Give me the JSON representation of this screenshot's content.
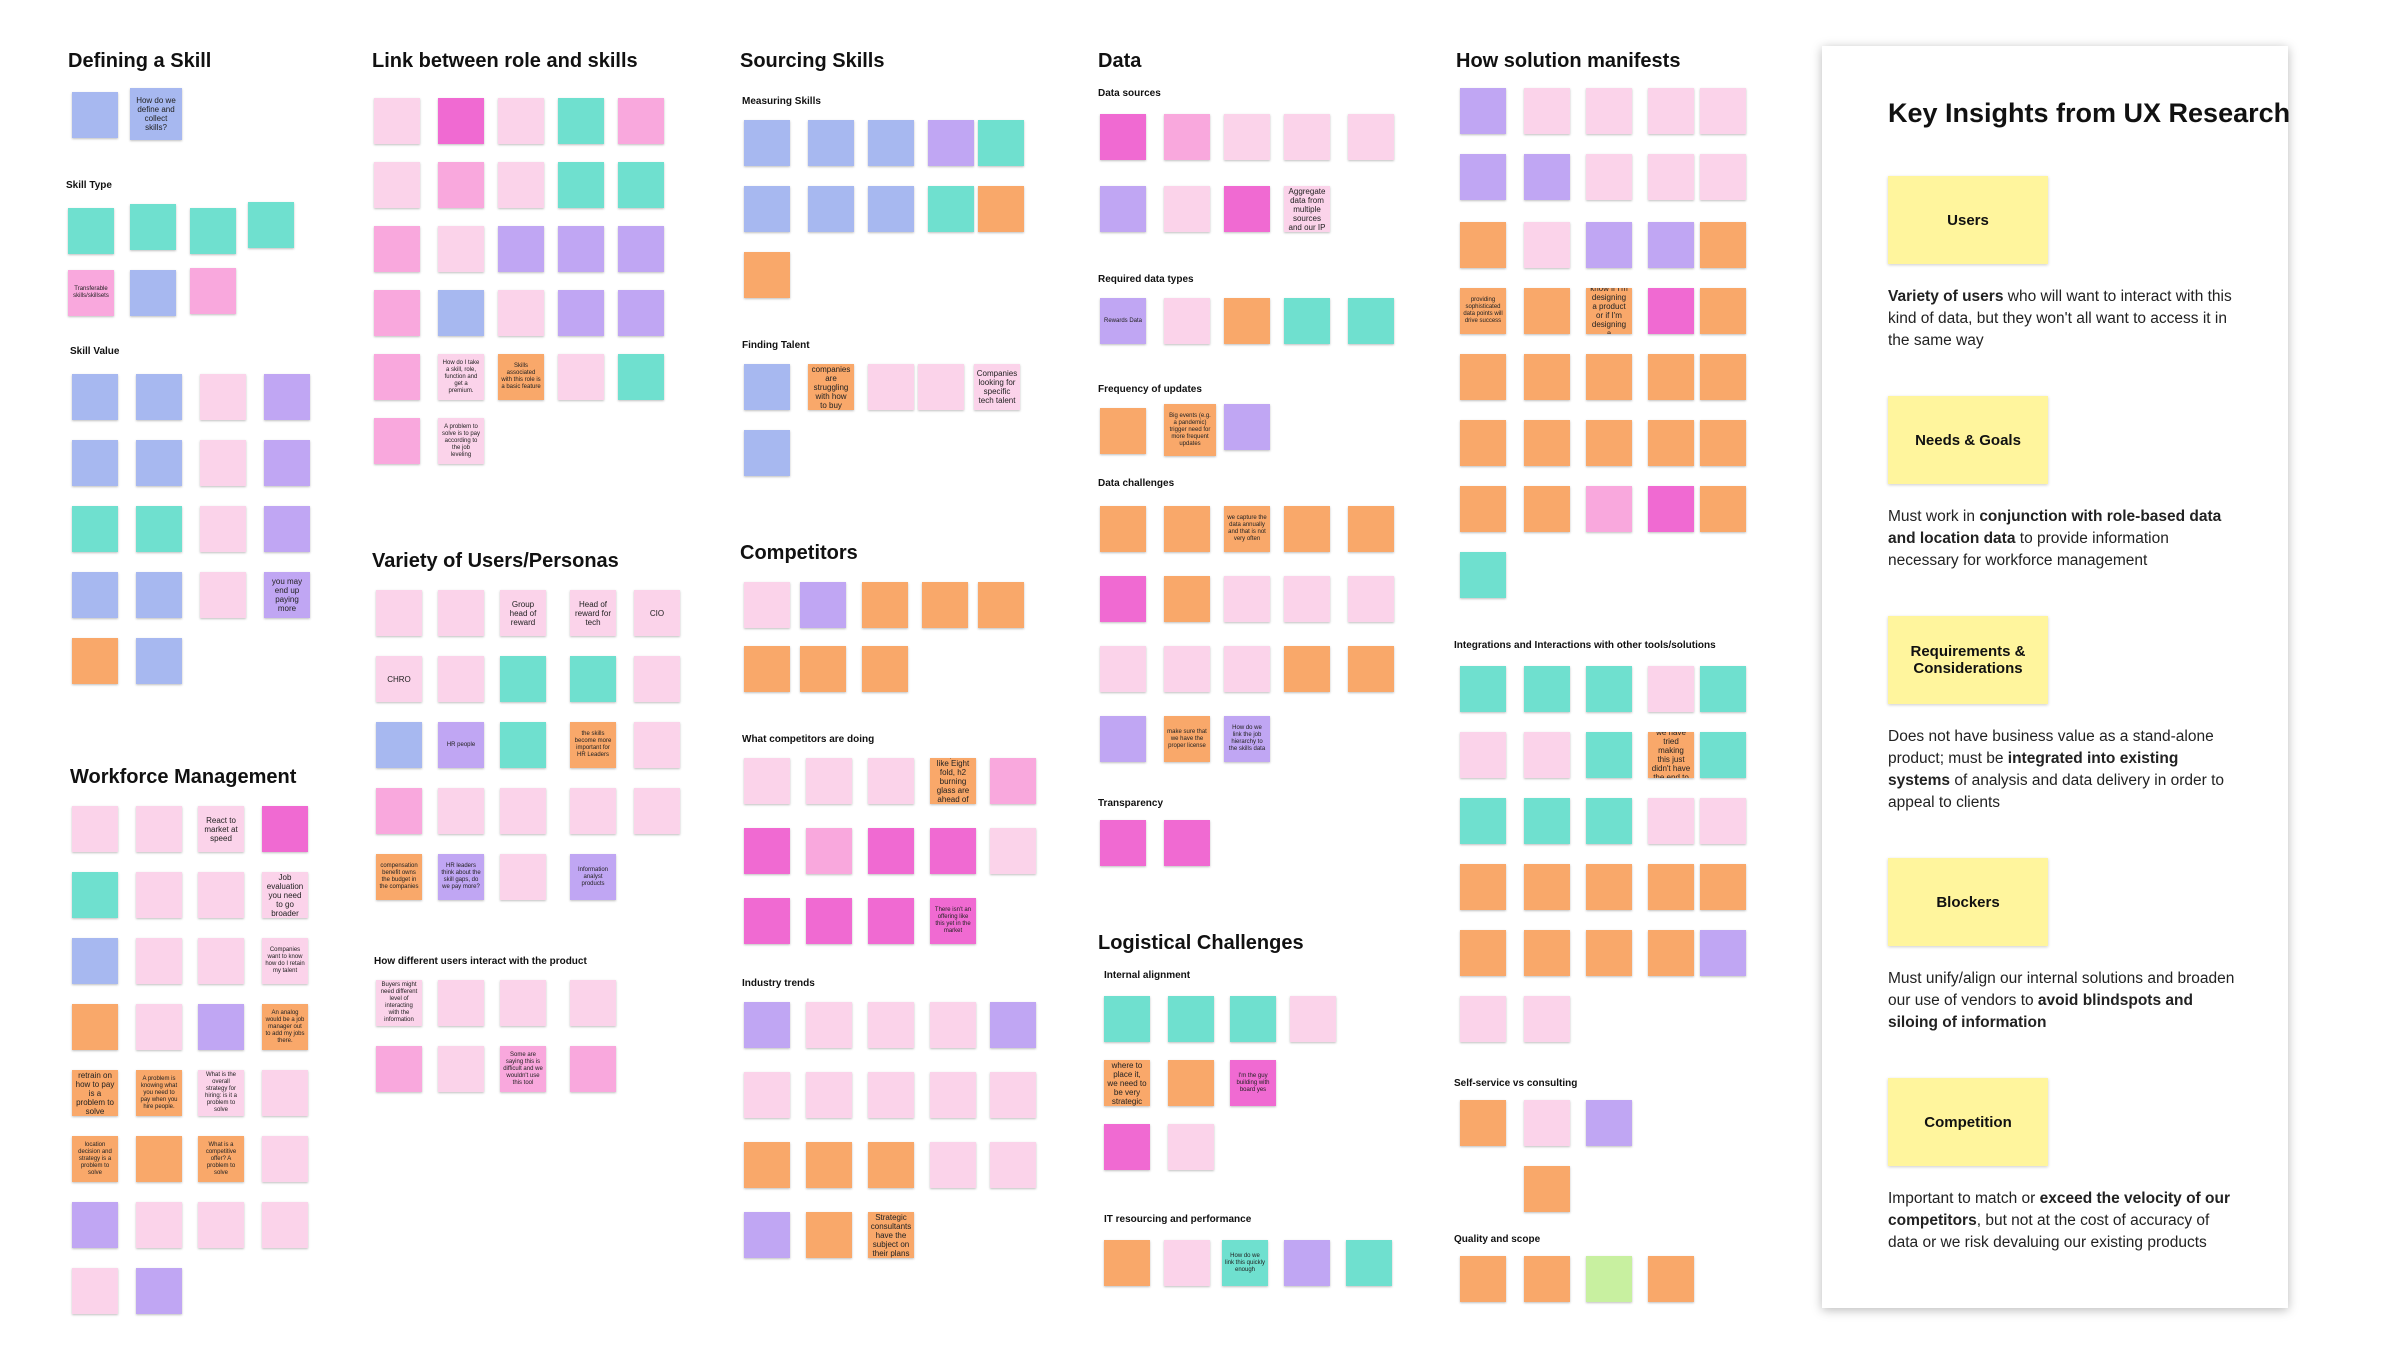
{
  "sections": {
    "defining": {
      "title": "Defining a Skill",
      "skill_type": "Skill Type",
      "skill_value": "Skill Value",
      "notes": [
        "How do we define and collect skills?",
        "Transferable skills/skillsets",
        "you may end up paying more"
      ]
    },
    "workforce": {
      "title": "Workforce Management",
      "notes": [
        "React to market at speed",
        "Job evaluation you need to go broader",
        "Companies want to know how do I retain my talent",
        "An analog would be a job manager out to add my jobs there.",
        "What is the overall strategy for hiring: is it a problem to solve",
        "retrain on how to pay is a problem to solve",
        "A problem is knowing what you need to pay when you hire people.",
        "What is a competitive offer? A problem to solve",
        "location decision and strategy is a problem to solve"
      ]
    },
    "link": {
      "title": "Link between role and skills",
      "notes": [
        "How do I take a skill, role, function and get a premium.",
        "Skills associated with this role is a basic feature",
        "A problem to solve is to pay according to the job leveling"
      ]
    },
    "variety": {
      "title": "Variety of Users/Personas",
      "notes": [
        "Group head of reward",
        "Head of reward for tech",
        "CIO",
        "CHRO",
        "HR people",
        "the skills become more important for HR Leaders",
        "compensation benefit owns the budget in the companies",
        "HR leaders think about the skill gaps, do we pay more?",
        "Information analyst products"
      ]
    },
    "how_users": {
      "title": "How different users interact with the product",
      "notes": [
        "Buyers might need different level of interacting with the information",
        "Some are saying this is difficult and we wouldn't use this tool"
      ]
    },
    "sourcing": {
      "title": "Sourcing Skills",
      "measuring": "Measuring Skills",
      "finding": "Finding Talent",
      "notes": [
        "the companies are struggling with how to buy skills",
        "Companies looking for specific tech talent"
      ]
    },
    "competitors": {
      "title": "Competitors",
      "doing": "What competitors are doing",
      "trends": "Industry trends",
      "notes": [
        "Companies like Eight fold, h2 burning glass are ahead of us",
        "Strategic consultants have the subject on their plans",
        "There isn't an offering like this yet in the market"
      ]
    },
    "data": {
      "title": "Data",
      "sources": "Data sources",
      "types": "Required data types",
      "frequency": "Frequency of updates",
      "challenges": "Data challenges",
      "transparency": "Transparency",
      "notes": [
        "Aggregate data from multiple sources and our IP",
        "Rewards Data",
        "Big events (e.g. a pandemic) trigger need for more frequent updates",
        "we capture the data annually and that is not very often",
        "make sure that we have the proper license",
        "How do we link the job hierarchy to the skills data"
      ]
    },
    "logistical": {
      "title": "Logistical Challenges",
      "alignment": "Internal alignment",
      "it": "IT resourcing and performance",
      "notes": [
        "where to place it, we need to be very strategic",
        "I'm the guy building with board yes",
        "How do we link this quickly enough"
      ]
    },
    "manifests": {
      "title": "How solution manifests",
      "integrations": "Integrations and Interactions with other tools/solutions",
      "self_service": "Self-service vs consulting",
      "quality": "Quality and scope",
      "notes": [
        "providing sophisticated data points will drive success",
        "I don't know if I'm designing a product or if I'm designing a technology",
        "Times that we have tried making this just didn't have the end to end"
      ]
    }
  },
  "panel": {
    "title": "Key Insights from UX Research",
    "insights": [
      {
        "label": "Users",
        "pre": "",
        "bold": "Variety of users",
        "post": " who will want to interact with this kind of data, but they won't all want to access it in the same way"
      },
      {
        "label": "Needs & Goals",
        "pre": "Must work in ",
        "bold": "conjunction with role-based data and location data",
        "post": " to provide information necessary for workforce management"
      },
      {
        "label": "Requirements & Considerations",
        "pre": "Does not have business value as a stand-alone product; must be ",
        "bold": "integrated into existing systems",
        "post": " of analysis and data delivery in order to appeal to clients"
      },
      {
        "label": "Blockers",
        "pre": "Must unify/align our internal solutions and broaden our use of vendors to ",
        "bold": "avoid blindspots and siloing of information",
        "post": ""
      },
      {
        "label": "Competition",
        "pre": "Important to match or ",
        "bold": "exceed the velocity of our competitors",
        "post": ", but not at the cost of accuracy of data or we risk devaluing our existing products"
      }
    ]
  },
  "colors": {
    "blue": "#a7b8f0",
    "cyan": "#6fe0cf",
    "pink": "#f9a8dd",
    "light_pink": "#fbd3ea",
    "magenta": "#f06ad2",
    "orange": "#f9a86a",
    "purple": "#c0a6f3",
    "green": "#c8f0a0",
    "insight_yellow": "#fff59d"
  }
}
